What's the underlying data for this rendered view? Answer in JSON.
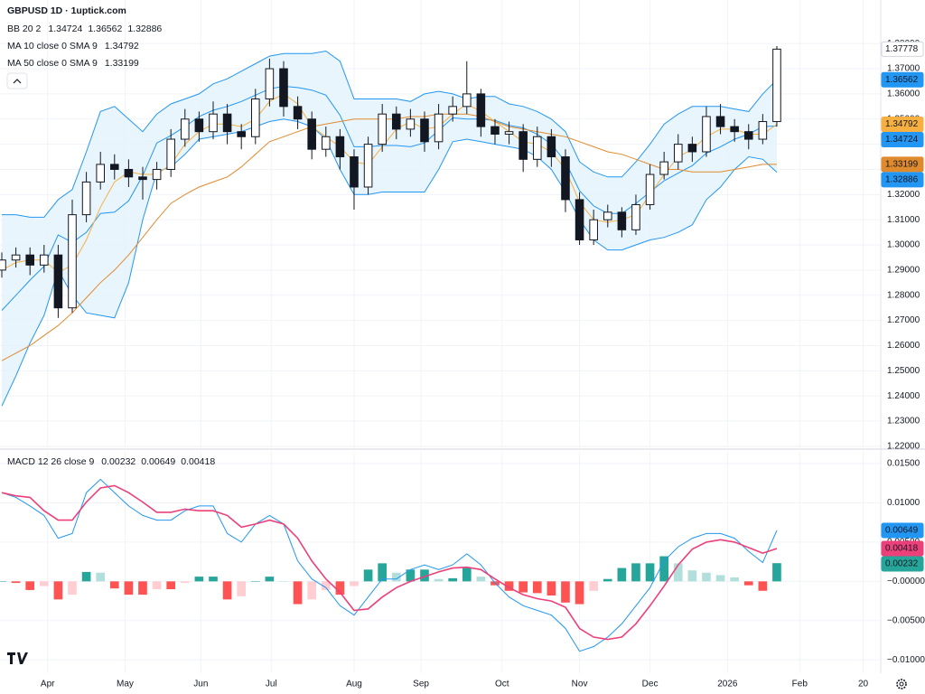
{
  "chart_data": [
    {
      "type": "candlestick",
      "title": "GBPUSD 1D · 1uptick.com",
      "x": [
        0,
        4,
        8,
        12,
        16,
        20,
        24,
        28,
        32,
        36,
        40,
        44,
        48,
        52,
        56,
        60,
        64,
        68,
        72,
        76,
        80,
        84,
        88,
        92,
        96,
        100,
        104,
        108,
        112,
        116,
        120,
        124,
        128,
        132,
        136,
        140,
        144,
        148,
        152,
        156,
        160,
        164,
        168,
        172,
        176,
        180,
        184,
        188,
        192,
        196,
        200,
        204,
        208,
        212,
        216,
        220
      ],
      "open": [
        1.29,
        1.294,
        1.296,
        1.292,
        1.296,
        1.275,
        1.312,
        1.325,
        1.332,
        1.33,
        1.327,
        1.326,
        1.33,
        1.342,
        1.35,
        1.345,
        1.352,
        1.345,
        1.343,
        1.358,
        1.37,
        1.355,
        1.35,
        1.338,
        1.343,
        1.335,
        1.323,
        1.34,
        1.352,
        1.346,
        1.35,
        1.341,
        1.352,
        1.355,
        1.36,
        1.347,
        1.344,
        1.345,
        1.334,
        1.343,
        1.335,
        1.318,
        1.302,
        1.31,
        1.313,
        1.306,
        1.316,
        1.328,
        1.333,
        1.34,
        1.337,
        1.351,
        1.347,
        1.345,
        1.342,
        1.349
      ],
      "high": [
        1.297,
        1.299,
        1.299,
        1.3,
        1.3,
        1.318,
        1.329,
        1.337,
        1.336,
        1.334,
        1.331,
        1.333,
        1.346,
        1.354,
        1.353,
        1.357,
        1.356,
        1.348,
        1.362,
        1.374,
        1.373,
        1.359,
        1.353,
        1.347,
        1.346,
        1.338,
        1.343,
        1.356,
        1.355,
        1.354,
        1.353,
        1.356,
        1.359,
        1.373,
        1.362,
        1.35,
        1.349,
        1.348,
        1.347,
        1.346,
        1.338,
        1.321,
        1.314,
        1.316,
        1.315,
        1.32,
        1.332,
        1.337,
        1.344,
        1.343,
        1.355,
        1.356,
        1.35,
        1.348,
        1.352,
        1.379
      ],
      "low": [
        1.287,
        1.291,
        1.288,
        1.289,
        1.271,
        1.273,
        1.309,
        1.322,
        1.326,
        1.323,
        1.318,
        1.322,
        1.327,
        1.339,
        1.341,
        1.342,
        1.34,
        1.338,
        1.34,
        1.355,
        1.351,
        1.346,
        1.334,
        1.335,
        1.33,
        1.314,
        1.32,
        1.337,
        1.342,
        1.343,
        1.337,
        1.338,
        1.349,
        1.352,
        1.343,
        1.34,
        1.34,
        1.329,
        1.331,
        1.331,
        1.313,
        1.3,
        1.3,
        1.307,
        1.303,
        1.304,
        1.314,
        1.326,
        1.33,
        1.333,
        1.335,
        1.344,
        1.341,
        1.338,
        1.34,
        1.347
      ],
      "close": [
        1.294,
        1.296,
        1.292,
        1.296,
        1.275,
        1.312,
        1.325,
        1.332,
        1.33,
        1.327,
        1.326,
        1.33,
        1.342,
        1.35,
        1.345,
        1.352,
        1.345,
        1.343,
        1.358,
        1.37,
        1.355,
        1.35,
        1.338,
        1.343,
        1.335,
        1.323,
        1.34,
        1.352,
        1.346,
        1.35,
        1.341,
        1.352,
        1.355,
        1.36,
        1.347,
        1.344,
        1.345,
        1.334,
        1.343,
        1.335,
        1.318,
        1.302,
        1.31,
        1.313,
        1.306,
        1.316,
        1.328,
        1.333,
        1.34,
        1.337,
        1.351,
        1.347,
        1.345,
        1.342,
        1.349,
        1.37778
      ],
      "up_color": "#ffffff",
      "down_color": "#131722",
      "wick_color": "#131722",
      "indicators": [
        {
          "name": "BB 20 2",
          "color": "#2196f3",
          "fill": "#e3f2fd",
          "basis": [
            1.274,
            1.28,
            1.286,
            1.2915,
            1.304,
            1.301,
            1.305,
            1.3125,
            1.313,
            1.3175,
            1.3275,
            1.3405,
            1.3435,
            1.347,
            1.351,
            1.3535,
            1.355,
            1.357,
            1.3595,
            1.362,
            1.363,
            1.3625,
            1.3615,
            1.3595,
            1.3515,
            1.339,
            1.339,
            1.3395,
            1.3395,
            1.339,
            1.3405,
            1.3455,
            1.3505,
            1.35,
            1.35,
            1.3495,
            1.3475,
            1.3465,
            1.344,
            1.34,
            1.333,
            1.3215,
            1.3155,
            1.3125,
            1.3125,
            1.3165,
            1.321,
            1.3255,
            1.3285,
            1.3315,
            1.3365,
            1.339,
            1.342,
            1.344,
            1.347,
            1.34724
          ],
          "upper": [
            1.312,
            1.312,
            1.311,
            1.311,
            1.318,
            1.322,
            1.337,
            1.353,
            1.355,
            1.35,
            1.345,
            1.352,
            1.356,
            1.358,
            1.36,
            1.364,
            1.366,
            1.369,
            1.372,
            1.375,
            1.376,
            1.376,
            1.376,
            1.377,
            1.373,
            1.358,
            1.358,
            1.358,
            1.358,
            1.357,
            1.36,
            1.361,
            1.36,
            1.358,
            1.359,
            1.359,
            1.356,
            1.355,
            1.353,
            1.35,
            1.345,
            1.333,
            1.329,
            1.327,
            1.327,
            1.333,
            1.34,
            1.348,
            1.352,
            1.355,
            1.355,
            1.355,
            1.354,
            1.353,
            1.36,
            1.36562
          ],
          "lower": [
            1.236,
            1.248,
            1.261,
            1.272,
            1.29,
            1.28,
            1.273,
            1.272,
            1.271,
            1.285,
            1.31,
            1.329,
            1.331,
            1.336,
            1.342,
            1.343,
            1.344,
            1.345,
            1.347,
            1.349,
            1.35,
            1.349,
            1.347,
            1.342,
            1.33,
            1.32,
            1.32,
            1.321,
            1.321,
            1.321,
            1.321,
            1.33,
            1.341,
            1.342,
            1.341,
            1.34,
            1.339,
            1.338,
            1.335,
            1.33,
            1.321,
            1.31,
            1.302,
            1.298,
            1.298,
            1.3,
            1.302,
            1.303,
            1.305,
            1.308,
            1.318,
            1.323,
            1.33,
            1.335,
            1.334,
            1.32886
          ]
        },
        {
          "name": "MA 10 close 0 SMA 9",
          "color": "#f5b041",
          "values": [
            1.29,
            1.293,
            1.294,
            1.294,
            1.289,
            1.292,
            1.302,
            1.315,
            1.325,
            1.329,
            1.328,
            1.328,
            1.332,
            1.34,
            1.345,
            1.348,
            1.348,
            1.347,
            1.35,
            1.357,
            1.36,
            1.356,
            1.347,
            1.343,
            1.339,
            1.333,
            1.332,
            1.339,
            1.346,
            1.349,
            1.346,
            1.347,
            1.352,
            1.356,
            1.353,
            1.349,
            1.345,
            1.341,
            1.34,
            1.337,
            1.33,
            1.317,
            1.31,
            1.309,
            1.31,
            1.312,
            1.32,
            1.328,
            1.335,
            1.338,
            1.343,
            1.346,
            1.346,
            1.344,
            1.344,
            1.34792
          ]
        },
        {
          "name": "MA 50 close 0 SMA 9",
          "color": "#e08a2e",
          "values": [
            1.254,
            1.257,
            1.26,
            1.264,
            1.268,
            1.273,
            1.279,
            1.285,
            1.29,
            1.296,
            1.303,
            1.31,
            1.3165,
            1.32,
            1.323,
            1.325,
            1.327,
            1.331,
            1.336,
            1.341,
            1.343,
            1.345,
            1.347,
            1.348,
            1.349,
            1.35,
            1.35,
            1.35,
            1.35,
            1.351,
            1.351,
            1.352,
            1.352,
            1.352,
            1.351,
            1.349,
            1.347,
            1.346,
            1.345,
            1.344,
            1.343,
            1.341,
            1.339,
            1.337,
            1.336,
            1.334,
            1.332,
            1.33,
            1.33,
            1.329,
            1.329,
            1.329,
            1.33,
            1.331,
            1.332,
            1.33199
          ]
        }
      ],
      "xlim": [
        0,
        249.5
      ],
      "xticks": [
        {
          "value": 13,
          "label": "Apr"
        },
        {
          "value": 35,
          "label": "May"
        },
        {
          "value": 56.5,
          "label": "Jun"
        },
        {
          "value": 76.5,
          "label": "Jul"
        },
        {
          "value": 100,
          "label": "Aug"
        },
        {
          "value": 119,
          "label": "Sep"
        },
        {
          "value": 142,
          "label": "Oct"
        },
        {
          "value": 164,
          "label": "Nov"
        },
        {
          "value": 184,
          "label": "Dec"
        },
        {
          "value": 206,
          "label": "2026"
        },
        {
          "value": 226.5,
          "label": "Feb"
        },
        {
          "value": 244.5,
          "label": "20"
        }
      ],
      "ylim": [
        1.2196,
        1.3973
      ],
      "yticks": [
        {
          "value": 1.22,
          "label": "1.22000"
        },
        {
          "value": 1.23,
          "label": "1.23000"
        },
        {
          "value": 1.24,
          "label": "1.24000"
        },
        {
          "value": 1.25,
          "label": "1.25000"
        },
        {
          "value": 1.26,
          "label": "1.26000"
        },
        {
          "value": 1.27,
          "label": "1.27000"
        },
        {
          "value": 1.28,
          "label": "1.28000"
        },
        {
          "value": 1.29,
          "label": "1.29000"
        },
        {
          "value": 1.3,
          "label": "1.30000"
        },
        {
          "value": 1.31,
          "label": "1.31000"
        },
        {
          "value": 1.32,
          "label": "1.32000"
        },
        {
          "value": 1.33,
          "label": "1.33000"
        },
        {
          "value": 1.34,
          "label": "1.34000"
        },
        {
          "value": 1.35,
          "label": "1.35000"
        },
        {
          "value": 1.36,
          "label": "1.36000"
        },
        {
          "value": 1.37,
          "label": "1.37000"
        },
        {
          "value": 1.38,
          "label": "1.38000"
        }
      ],
      "grid": true
    },
    {
      "type": "macd",
      "name": "MACD 12 26 close 9",
      "histogram": {
        "color": "#26a69a",
        "colors": {
          "rise_above": "#26a69a",
          "fall_above": "#b2dfdb",
          "fall_below": "#ff5252",
          "rise_below": "#ffcdd2"
        },
        "values": [
          0.0,
          -0.0002,
          -0.0011,
          -0.0006,
          -0.0023,
          -0.0017,
          0.0012,
          0.0011,
          -0.0009,
          -0.0017,
          -0.0017,
          -0.001,
          -0.001,
          -0.0002,
          0.0006,
          0.0006,
          -0.0023,
          -0.0019,
          0.0,
          0.0006,
          0.0,
          -0.0029,
          -0.0023,
          -0.0011,
          -0.0017,
          -0.0006,
          0.0015,
          0.0023,
          0.0011,
          0.0015,
          0.0015,
          0.0003,
          0.0004,
          0.0017,
          0.0006,
          -0.0005,
          -0.0012,
          -0.0014,
          -0.0015,
          -0.0018,
          -0.0027,
          -0.0029,
          -0.0012,
          0.0003,
          0.0017,
          0.0023,
          0.0023,
          0.0032,
          0.0023,
          0.0014,
          0.0011,
          0.0008,
          0.0005,
          -0.0005,
          -0.0012,
          0.00232
        ]
      },
      "macd": {
        "color": "#2196f3",
        "values": [
          0.0113,
          0.0107,
          0.0096,
          0.0084,
          0.0055,
          0.0061,
          0.0113,
          0.013,
          0.0113,
          0.0096,
          0.0084,
          0.0078,
          0.0078,
          0.009,
          0.0096,
          0.0096,
          0.0061,
          0.005,
          0.0073,
          0.0084,
          0.0073,
          0.0026,
          0.0003,
          -0.0008,
          -0.0031,
          -0.0043,
          -0.002,
          0.0003,
          0.0003,
          0.0015,
          0.0021,
          0.0015,
          0.0021,
          0.0035,
          0.0021,
          -0.0002,
          -0.002,
          -0.0031,
          -0.0037,
          -0.0043,
          -0.006,
          -0.0089,
          -0.0083,
          -0.0071,
          -0.0054,
          -0.0031,
          -0.0008,
          0.0026,
          0.0044,
          0.0055,
          0.0061,
          0.0061,
          0.0055,
          0.0038,
          0.0024,
          0.00649
        ]
      },
      "signal": {
        "color": "#ec407a",
        "values": [
          0.0113,
          0.0109,
          0.0107,
          0.009,
          0.0078,
          0.0078,
          0.0101,
          0.0119,
          0.0122,
          0.0113,
          0.0101,
          0.0088,
          0.0088,
          0.0092,
          0.009,
          0.009,
          0.0084,
          0.0069,
          0.0073,
          0.0078,
          0.0073,
          0.0055,
          0.0026,
          0.0003,
          -0.0014,
          -0.0037,
          -0.0035,
          -0.002,
          -0.0008,
          0.0,
          0.0006,
          0.0012,
          0.0017,
          0.0018,
          0.0015,
          0.0003,
          -0.0008,
          -0.0017,
          -0.0022,
          -0.0025,
          -0.0033,
          -0.006,
          -0.0071,
          -0.0074,
          -0.0071,
          -0.0054,
          -0.0031,
          -0.0006,
          0.0021,
          0.0041,
          0.005,
          0.0053,
          0.005,
          0.0043,
          0.0036,
          0.00418
        ]
      },
      "ylim": [
        -0.0117,
        0.0165
      ],
      "yticks": [
        {
          "value": 0.015,
          "label": "0.01500"
        },
        {
          "value": 0.01,
          "label": "0.01000"
        },
        {
          "value": 0.005,
          "label": "0.00500"
        },
        {
          "value": 0,
          "label": "−0.00000"
        },
        {
          "value": -0.005,
          "label": "−0.00500"
        },
        {
          "value": -0.01,
          "label": "−0.01000"
        }
      ],
      "grid": true
    }
  ]
}
